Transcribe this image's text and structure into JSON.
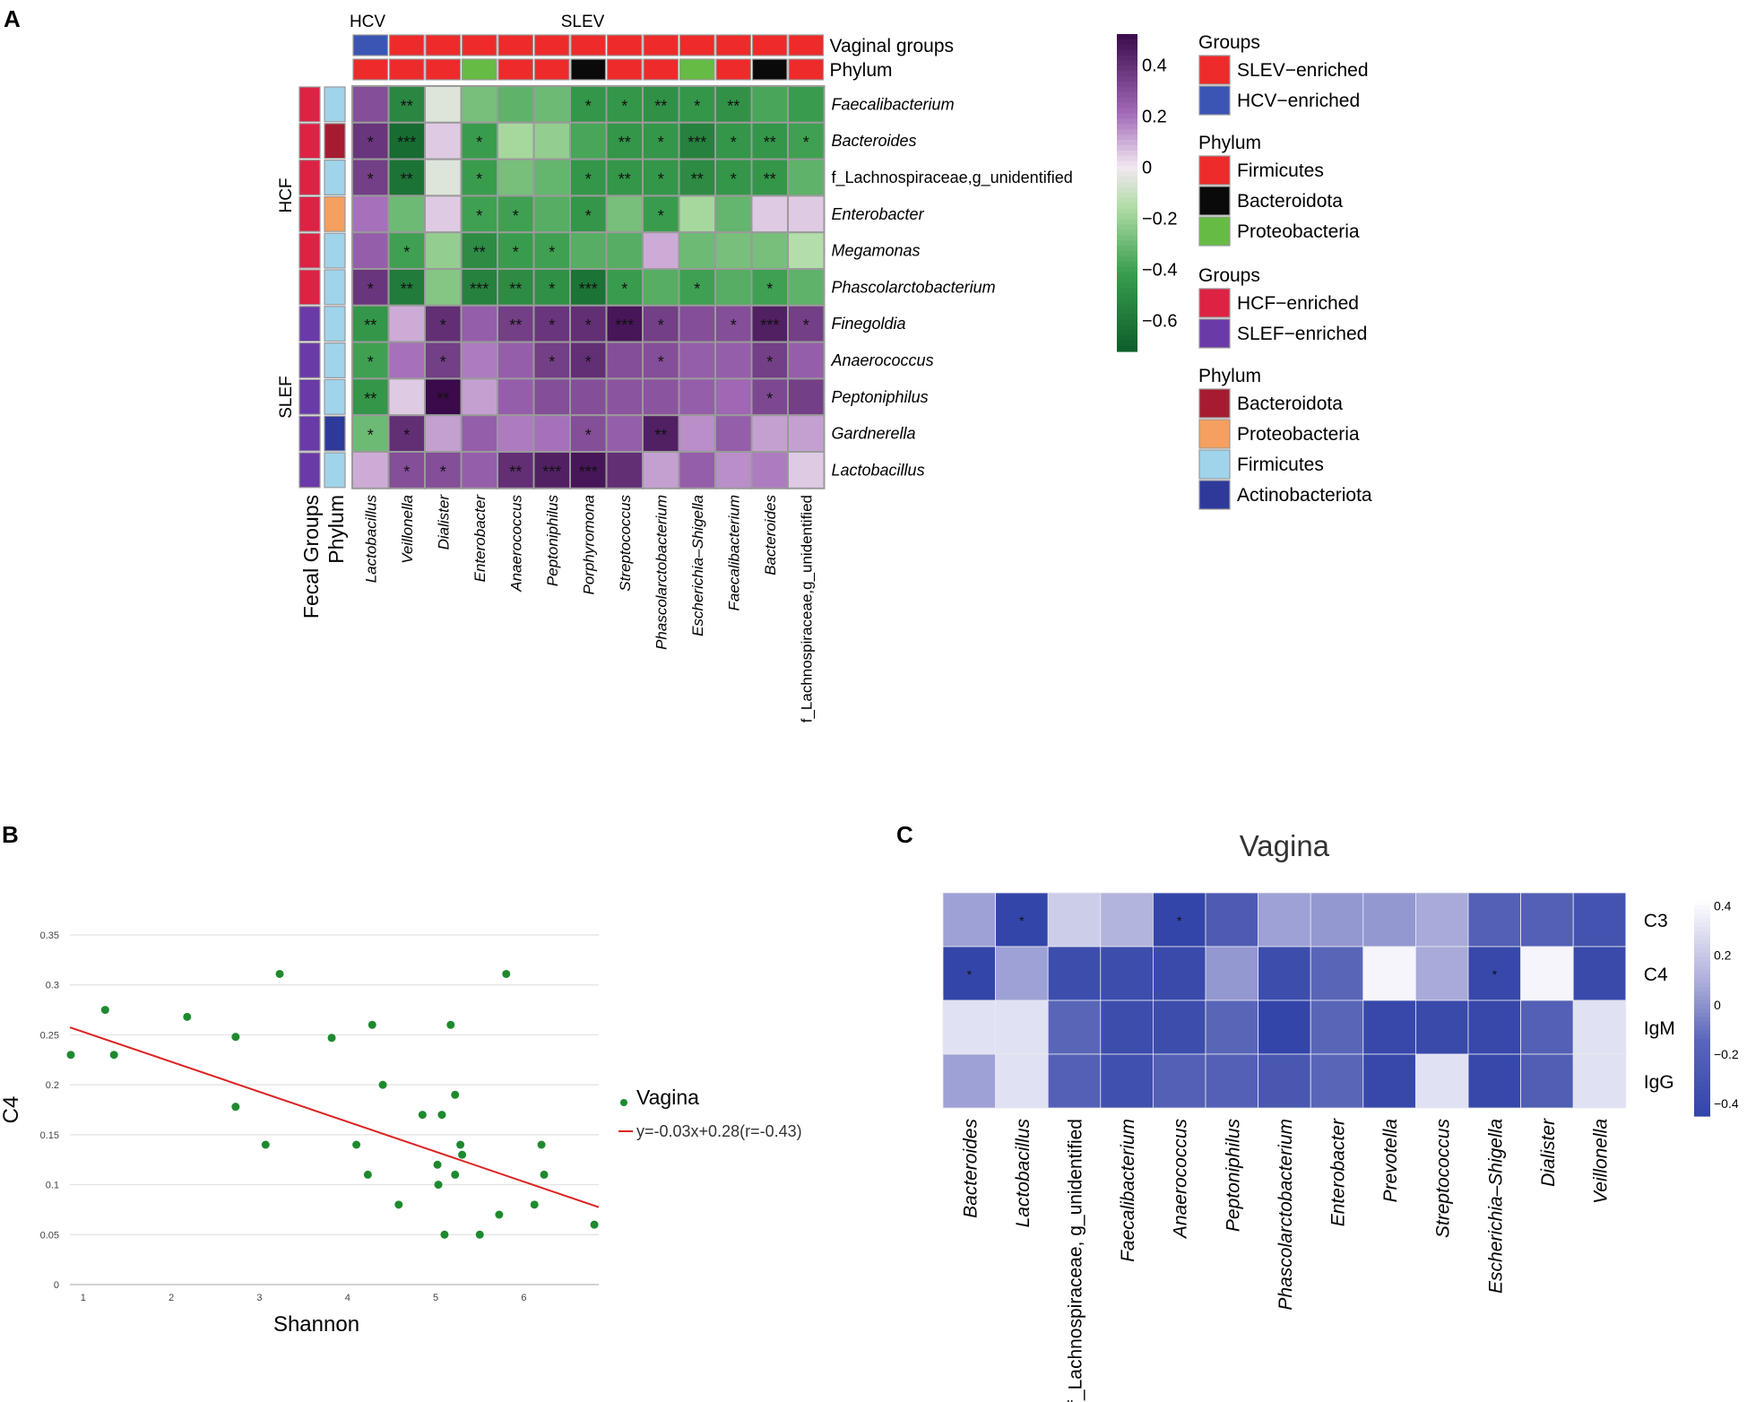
{
  "panels": {
    "a": {
      "letter": "A"
    },
    "b": {
      "letter": "B"
    },
    "c": {
      "letter": "C",
      "title": "Vagina"
    }
  },
  "chart_data": [
    {
      "id": "panelA",
      "type": "heatmap",
      "column_top_labels": {
        "hcv": "HCV",
        "slev": "SLEV"
      },
      "annotation_rows": [
        "Vaginal groups",
        "Phylum"
      ],
      "annotation_cols": [
        "Fecal Groups",
        "Phylum"
      ],
      "row_groups": {
        "hcf": "HCF",
        "slef": "SLEF"
      },
      "columns": [
        "Lactobacillus",
        "Veillonella",
        "Dialister",
        "Enterobacter",
        "Anaerococcus",
        "Peptoniphilus",
        "Porphyromona",
        "Streptococcus",
        "Phascolarctobacterium",
        "Escherichia–Shigella",
        "Faecalibacterium",
        "Bacteroides",
        "f_Lachnospiraceae,g_unidentified"
      ],
      "col_vaginal_group": [
        "HCV",
        "SLEV",
        "SLEV",
        "SLEV",
        "SLEV",
        "SLEV",
        "SLEV",
        "SLEV",
        "SLEV",
        "SLEV",
        "SLEV",
        "SLEV",
        "SLEV"
      ],
      "col_phylum": [
        "Firmicutes",
        "Firmicutes",
        "Firmicutes",
        "Proteobacteria",
        "Firmicutes",
        "Firmicutes",
        "Bacteroidota",
        "Firmicutes",
        "Firmicutes",
        "Proteobacteria",
        "Firmicutes",
        "Bacteroidota",
        "Firmicutes"
      ],
      "rows": [
        "Faecalibacterium",
        "Bacteroides",
        "f_Lachnospiraceae,g_unidentified",
        "Enterobacter",
        "Megamonas",
        "Phascolarctobacterium",
        "Finegoldia",
        "Anaerococcus",
        "Peptoniphilus",
        "Gardnerella",
        "Lactobacillus"
      ],
      "row_group": [
        "HCF",
        "HCF",
        "HCF",
        "HCF",
        "HCF",
        "HCF",
        "SLEF",
        "SLEF",
        "SLEF",
        "SLEF",
        "SLEF"
      ],
      "row_phylum": [
        "Firmicutes",
        "Bacteroidota",
        "Firmicutes",
        "Proteobacteria",
        "Firmicutes",
        "Firmicutes",
        "Firmicutes",
        "Firmicutes",
        "Firmicutes",
        "Actinobacteriota",
        "Firmicutes"
      ],
      "values": [
        [
          0.3,
          -0.52,
          -0.05,
          -0.28,
          -0.33,
          -0.3,
          -0.45,
          -0.45,
          -0.48,
          -0.45,
          -0.47,
          -0.38,
          -0.42
        ],
        [
          0.38,
          -0.65,
          0.05,
          -0.42,
          -0.18,
          -0.22,
          -0.38,
          -0.45,
          -0.45,
          -0.55,
          -0.45,
          -0.45,
          -0.4
        ],
        [
          0.35,
          -0.62,
          -0.05,
          -0.42,
          -0.28,
          -0.32,
          -0.45,
          -0.45,
          -0.45,
          -0.5,
          -0.45,
          -0.45,
          -0.33
        ],
        [
          0.2,
          -0.3,
          0.05,
          -0.4,
          -0.4,
          -0.35,
          -0.45,
          -0.28,
          -0.42,
          -0.18,
          -0.32,
          0.05,
          0.05
        ],
        [
          0.25,
          -0.4,
          -0.22,
          -0.5,
          -0.42,
          -0.4,
          -0.35,
          -0.35,
          0.1,
          -0.3,
          -0.28,
          -0.28,
          -0.15
        ],
        [
          0.38,
          -0.58,
          -0.25,
          -0.55,
          -0.5,
          -0.48,
          -0.62,
          -0.42,
          -0.35,
          -0.4,
          -0.35,
          -0.4,
          -0.33
        ],
        [
          -0.45,
          0.1,
          0.4,
          0.25,
          0.35,
          0.38,
          0.4,
          0.48,
          0.35,
          0.3,
          0.3,
          0.45,
          0.35
        ],
        [
          -0.4,
          0.2,
          0.35,
          0.18,
          0.25,
          0.35,
          0.4,
          0.3,
          0.3,
          0.25,
          0.25,
          0.35,
          0.25
        ],
        [
          -0.45,
          0.05,
          0.52,
          0.12,
          0.25,
          0.3,
          0.3,
          0.28,
          0.28,
          0.25,
          0.22,
          0.32,
          0.35
        ],
        [
          -0.3,
          0.4,
          0.12,
          0.25,
          0.18,
          0.2,
          0.3,
          0.25,
          0.45,
          0.15,
          0.25,
          0.12,
          0.12
        ],
        [
          0.1,
          0.3,
          0.3,
          0.25,
          0.4,
          0.45,
          0.48,
          0.4,
          0.12,
          0.25,
          0.15,
          0.18,
          0.05
        ]
      ],
      "significance": [
        [
          "",
          "**",
          "",
          "",
          "",
          "",
          "*",
          "*",
          "**",
          "*",
          "**",
          "",
          ""
        ],
        [
          "*",
          "***",
          "",
          "*",
          "",
          "",
          "",
          "**",
          "*",
          "***",
          "*",
          "**",
          "*"
        ],
        [
          "*",
          "**",
          "",
          "*",
          "",
          "",
          "*",
          "**",
          "*",
          "**",
          "*",
          "**",
          ""
        ],
        [
          "",
          "",
          "",
          "*",
          "*",
          "",
          "*",
          "",
          "*",
          "",
          "",
          "",
          ""
        ],
        [
          "",
          "*",
          "",
          "**",
          "*",
          "*",
          "",
          "",
          "",
          "",
          "",
          "",
          ""
        ],
        [
          "*",
          "**",
          "",
          "***",
          "**",
          "*",
          "***",
          "*",
          "",
          "*",
          "",
          "*",
          ""
        ],
        [
          "**",
          "",
          "*",
          "",
          "**",
          "*",
          "*",
          "***",
          "*",
          "",
          "*",
          "***",
          "*"
        ],
        [
          "*",
          "",
          "*",
          "",
          "",
          "*",
          "*",
          "",
          "*",
          "",
          "",
          "*",
          ""
        ],
        [
          "**",
          "",
          "**",
          "",
          "",
          "",
          "",
          "",
          "",
          "",
          "",
          "*",
          ""
        ],
        [
          "*",
          "*",
          "",
          "",
          "",
          "",
          "*",
          "",
          "**",
          "",
          "",
          "",
          ""
        ],
        [
          "",
          "*",
          "*",
          "",
          "**",
          "***",
          "***",
          "",
          "",
          "",
          "",
          "",
          ""
        ]
      ],
      "colorbar_ticks": [
        0.4,
        0.2,
        0,
        -0.2,
        -0.4,
        -0.6
      ],
      "colorbar_tick_labels": [
        "0.4",
        "0.2",
        "0",
        "−0.2",
        "−0.4",
        "−0.6"
      ],
      "colorbar_range": [
        -0.72,
        0.52
      ],
      "legends": [
        {
          "title": "Groups",
          "items": [
            {
              "label": "SLEV−enriched",
              "color": "#ee2a2a"
            },
            {
              "label": "HCV−enriched",
              "color": "#3a55b4"
            }
          ]
        },
        {
          "title": "Phylum",
          "items": [
            {
              "label": "Firmicutes",
              "color": "#ee2a2a"
            },
            {
              "label": "Bacteroidota",
              "color": "#0a0a0a"
            },
            {
              "label": "Proteobacteria",
              "color": "#66bb44"
            }
          ]
        },
        {
          "title": "Groups",
          "items": [
            {
              "label": "HCF−enriched",
              "color": "#dd2244"
            },
            {
              "label": "SLEF−enriched",
              "color": "#6a3aa8"
            }
          ]
        },
        {
          "title": "Phylum",
          "items": [
            {
              "label": "Bacteroidota",
              "color": "#a51c30"
            },
            {
              "label": "Proteobacteria",
              "color": "#f5a060"
            },
            {
              "label": "Firmicutes",
              "color": "#9fd4ea"
            },
            {
              "label": "Actinobacteriota",
              "color": "#2d3a9a"
            }
          ]
        }
      ],
      "colors": {
        "SLEV": "#ee2a2a",
        "HCV": "#3a55b4",
        "HCF": "#dd2244",
        "SLEF": "#6a3aa8",
        "vag_phylum": {
          "Firmicutes": "#ee2a2a",
          "Bacteroidota": "#0a0a0a",
          "Proteobacteria": "#66bb44"
        },
        "fec_phylum": {
          "Bacteroidota": "#a51c30",
          "Proteobacteria": "#f5a060",
          "Firmicutes": "#9fd4ea",
          "Actinobacteriota": "#2d3a9a"
        }
      }
    },
    {
      "id": "panelB",
      "type": "scatter",
      "title": "",
      "xlabel": "Shannon",
      "ylabel": "C4",
      "xlim": [
        0.85,
        6.85
      ],
      "ylim": [
        0,
        0.35
      ],
      "xticks": [
        1,
        2,
        3,
        4,
        5,
        6
      ],
      "yticks": [
        0,
        0.05,
        0.1,
        0.15,
        0.2,
        0.25,
        0.3,
        0.35
      ],
      "x": [
        0.86,
        1.25,
        1.35,
        2.18,
        2.73,
        2.73,
        3.07,
        3.23,
        3.82,
        4.1,
        4.23,
        4.28,
        4.4,
        4.58,
        4.85,
        5.02,
        5.03,
        5.07,
        5.1,
        5.17,
        5.22,
        5.22,
        5.28,
        5.3,
        5.5,
        5.72,
        5.8,
        6.12,
        6.2,
        6.23,
        6.8
      ],
      "y": [
        0.23,
        0.275,
        0.23,
        0.268,
        0.248,
        0.178,
        0.14,
        0.311,
        0.247,
        0.14,
        0.11,
        0.26,
        0.2,
        0.08,
        0.17,
        0.12,
        0.1,
        0.17,
        0.05,
        0.26,
        0.19,
        0.11,
        0.14,
        0.13,
        0.05,
        0.07,
        0.311,
        0.08,
        0.14,
        0.11,
        0.06
      ],
      "series_name": "Vagina",
      "fit": {
        "slope": -0.03,
        "intercept": 0.283,
        "label": "y=-0.03x+0.28(r=-0.43)"
      },
      "colors": {
        "points": "#1e8a2e",
        "fit": "#dd2222",
        "grid": "#e2e2e2"
      }
    },
    {
      "id": "panelC",
      "type": "heatmap",
      "title": "Vagina",
      "rows": [
        "C3",
        "C4",
        "IgM",
        "IgG"
      ],
      "columns": [
        "Bacteroides",
        "Lactobacillus",
        "f_Lachnospiraceae, g_unidentified",
        "Faecalibacterium",
        "Anaerococcus",
        "Peptoniphilus",
        "Phascolarctobacterium",
        "Enterobacter",
        "Prevotella",
        "Streptococcus",
        "Escherichia–Shigella",
        "Dialister",
        "Veillonella"
      ],
      "values": [
        [
          0.05,
          -0.45,
          0.22,
          0.12,
          -0.45,
          -0.25,
          0.05,
          0.02,
          0.02,
          0.08,
          -0.2,
          -0.2,
          -0.32
        ],
        [
          -0.45,
          0.05,
          -0.38,
          -0.38,
          -0.4,
          0.02,
          -0.38,
          -0.15,
          0.38,
          0.08,
          -0.42,
          0.38,
          -0.4
        ],
        [
          0.3,
          0.3,
          -0.15,
          -0.38,
          -0.38,
          -0.15,
          -0.45,
          -0.15,
          -0.42,
          -0.4,
          -0.42,
          -0.2,
          0.3
        ],
        [
          0.05,
          0.3,
          -0.2,
          -0.35,
          -0.2,
          -0.2,
          -0.28,
          -0.15,
          -0.42,
          0.3,
          -0.42,
          -0.22,
          0.3
        ]
      ],
      "significance": [
        [
          "",
          "*",
          "",
          "",
          "*",
          "",
          "",
          "",
          "",
          "",
          "",
          "",
          ""
        ],
        [
          "*",
          "",
          "",
          "",
          "",
          "",
          "",
          "",
          "",
          "",
          "*",
          "",
          ""
        ],
        [
          "",
          "",
          "",
          "",
          "",
          "",
          "",
          "",
          "",
          "",
          "",
          "",
          ""
        ],
        [
          "",
          "",
          "",
          "",
          "",
          "",
          "",
          "",
          "",
          "",
          "",
          "",
          ""
        ]
      ],
      "colorbar_ticks": [
        0.4,
        0.2,
        0,
        -0.2,
        -0.4
      ],
      "colorbar_tick_labels": [
        "0.4",
        "0.2",
        "0",
        "−0.2",
        "−0.4"
      ],
      "colorbar_range": [
        -0.45,
        0.42
      ]
    }
  ]
}
